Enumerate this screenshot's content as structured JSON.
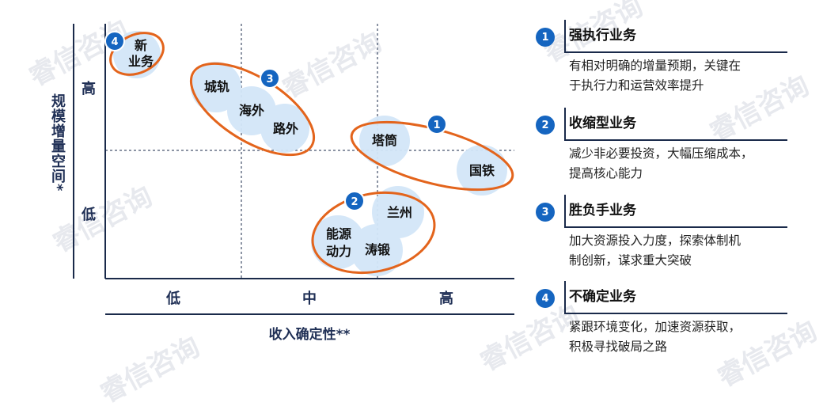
{
  "watermark_text": "睿信咨询",
  "matrix": {
    "y_axis_label": "规模增量空间*",
    "y_tick_high": "高",
    "y_tick_low": "低",
    "x_axis_label": "收入确定性**",
    "x_ticks": [
      "低",
      "中",
      "高"
    ]
  },
  "bubbles": [
    "新业务",
    "城轨",
    "海外",
    "路外",
    "塔筒",
    "国铁",
    "兰州",
    "能源动力",
    "涛锻"
  ],
  "bubble_display": {
    "xinyewu": [
      "新",
      "业务"
    ],
    "nengyuan": [
      "能源",
      "动力"
    ]
  },
  "group_badges": [
    "4",
    "3",
    "1",
    "2"
  ],
  "categories": [
    {
      "num": "1",
      "title": "强执行业务",
      "desc_lines": [
        "有相对明确的增量预期，关键在",
        "于执行力和运营效率提升"
      ]
    },
    {
      "num": "2",
      "title": "收缩型业务",
      "desc_lines": [
        "减少非必要投资，大幅压缩成本，",
        "提高核心能力"
      ]
    },
    {
      "num": "3",
      "title": "胜负手业务",
      "desc_lines": [
        "加大资源投入力度，探索体制机",
        "制创新，谋求重大突破"
      ]
    },
    {
      "num": "4",
      "title": "不确定业务",
      "desc_lines": [
        "紧跟环境变化，加速资源获取，",
        "积极寻找破局之路"
      ]
    }
  ],
  "colors": {
    "badge_blue": "#1565c0",
    "bubble_fill": "#d3e6f8",
    "ellipse_orange": "#e3641c",
    "axis_navy": "#1a2a4a"
  }
}
